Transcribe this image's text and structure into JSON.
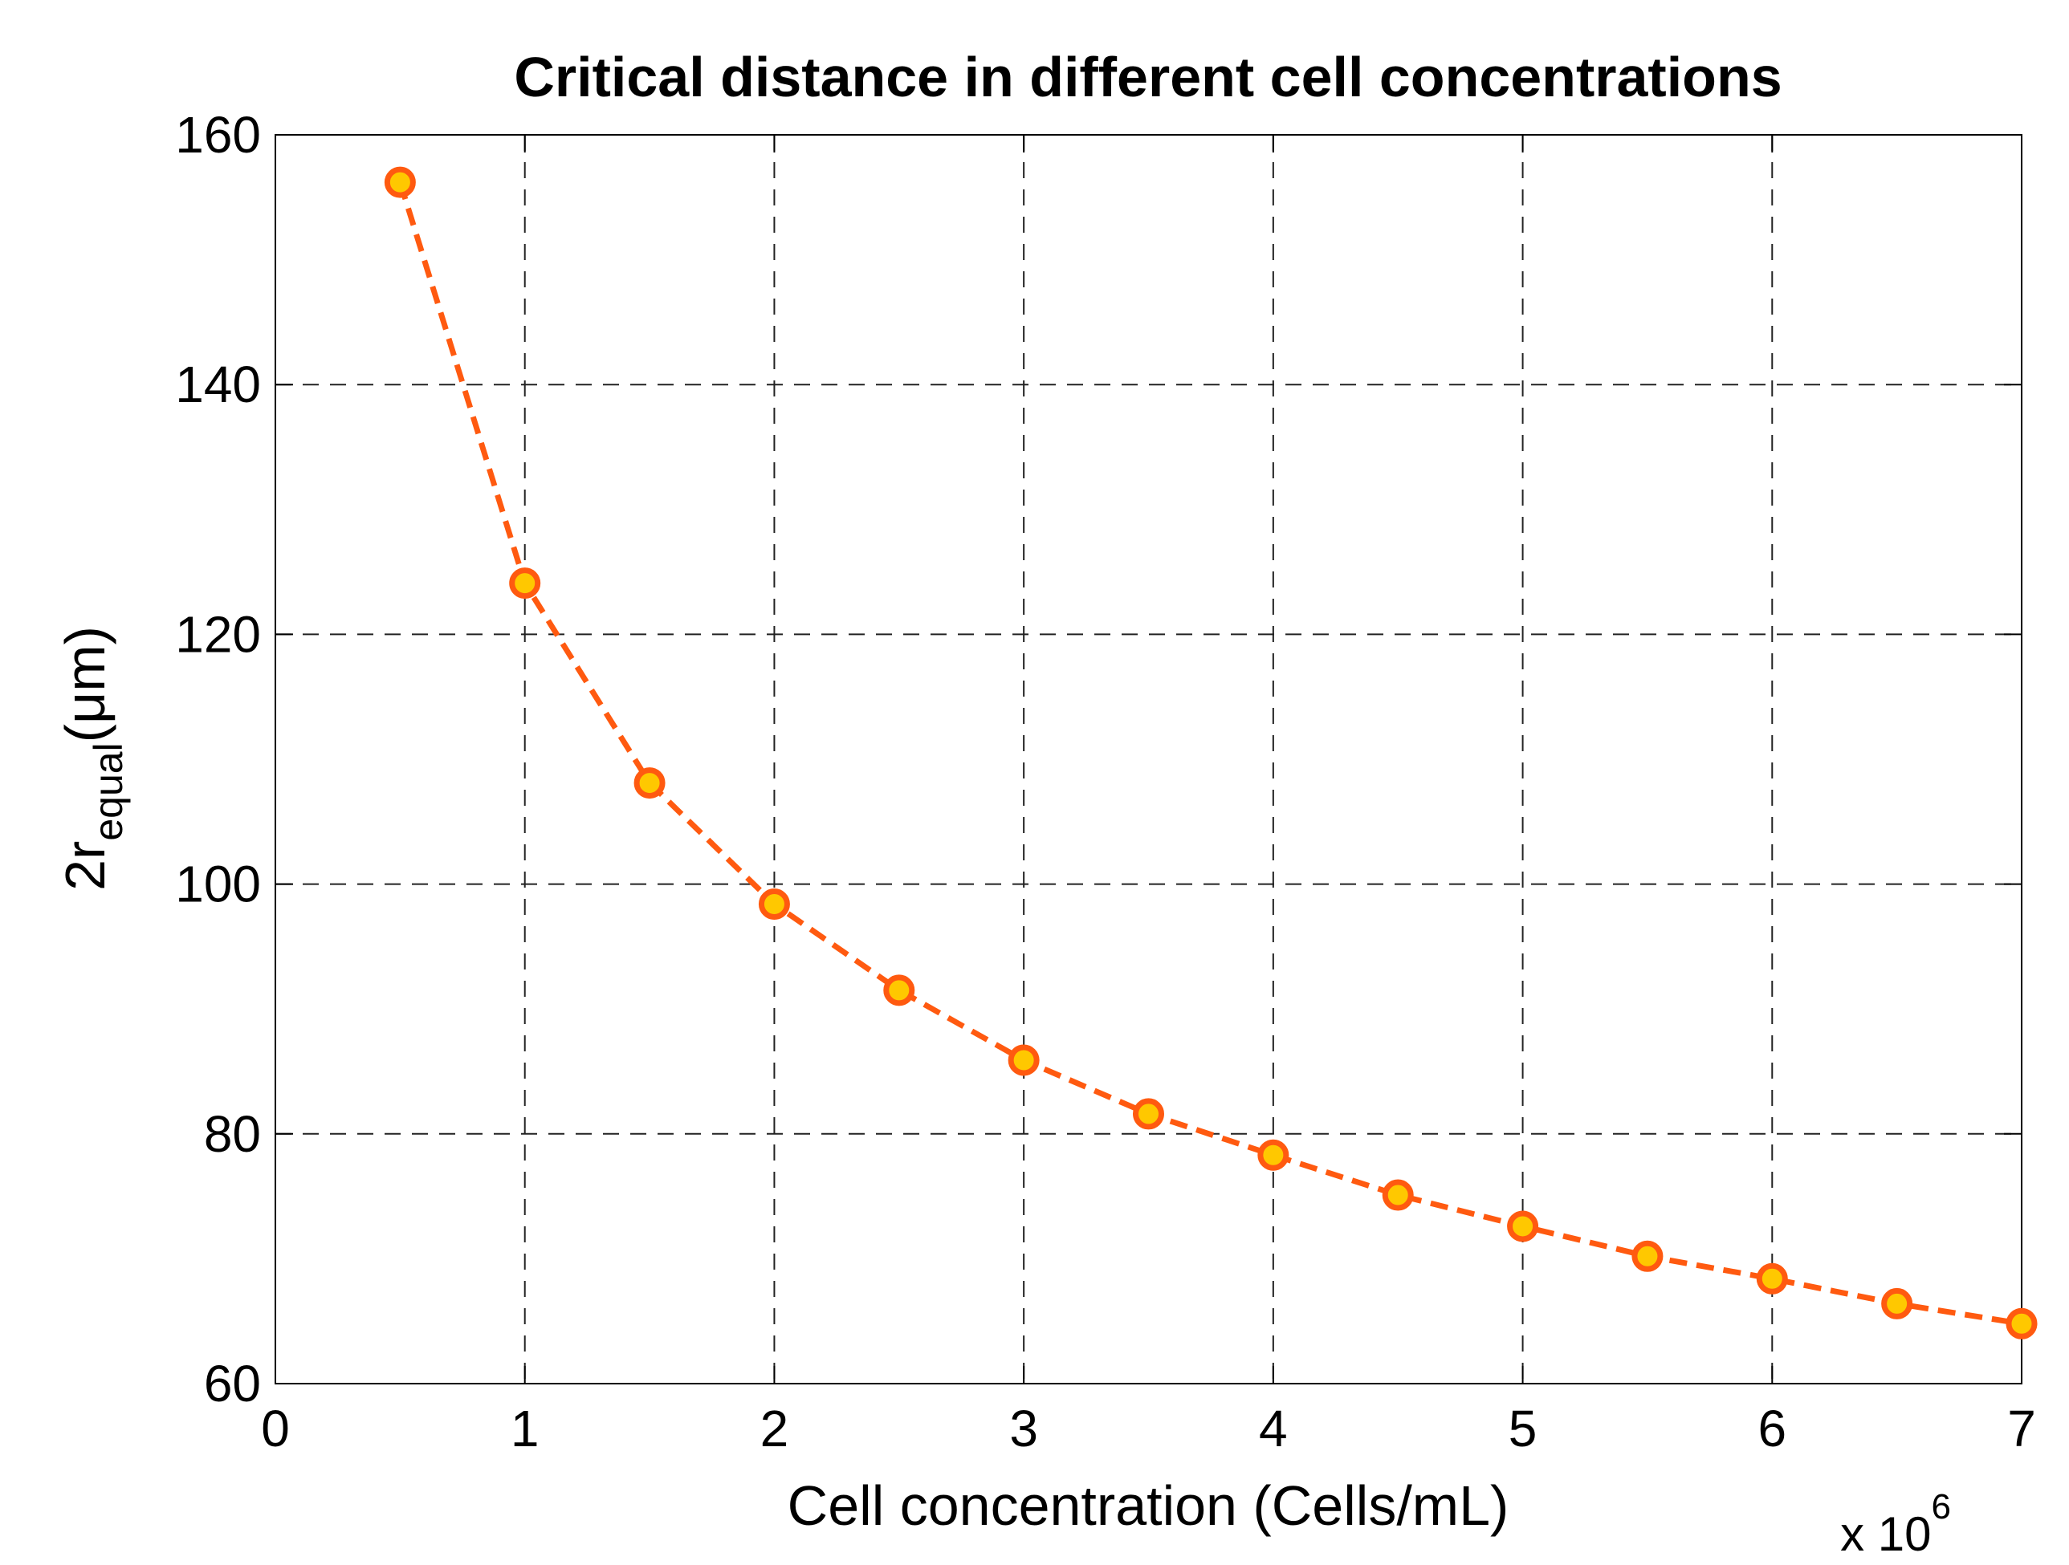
{
  "chart_data": {
    "type": "line",
    "title": "Critical distance in different cell concentrations",
    "xlabel": "Cell concentration (Cells/mL)",
    "x_multiplier_text": "x 10",
    "x_multiplier_exponent": "6",
    "ylabel": {
      "main": "2r",
      "subscript": "equal",
      "unit": "(μm)"
    },
    "xlim": [
      0,
      7
    ],
    "ylim": [
      60,
      160
    ],
    "xticks": [
      0,
      1,
      2,
      3,
      4,
      5,
      6,
      7
    ],
    "yticks": [
      60,
      80,
      100,
      120,
      140,
      160
    ],
    "grid": true,
    "series": [
      {
        "name": "Critical distance",
        "line_style": "dashed",
        "line_color": "#FF5A10",
        "marker": "circle",
        "marker_fill": "#FFC800",
        "marker_edge": "#FF5A10",
        "x": [
          0.5,
          1.0,
          1.5,
          2.0,
          2.5,
          3.0,
          3.5,
          4.0,
          4.5,
          5.0,
          5.5,
          6.0,
          6.5,
          7.0
        ],
        "y": [
          156.2,
          124.1,
          108.1,
          98.4,
          91.5,
          85.9,
          81.6,
          78.3,
          75.1,
          72.6,
          70.2,
          68.4,
          66.4,
          64.8
        ]
      }
    ]
  }
}
